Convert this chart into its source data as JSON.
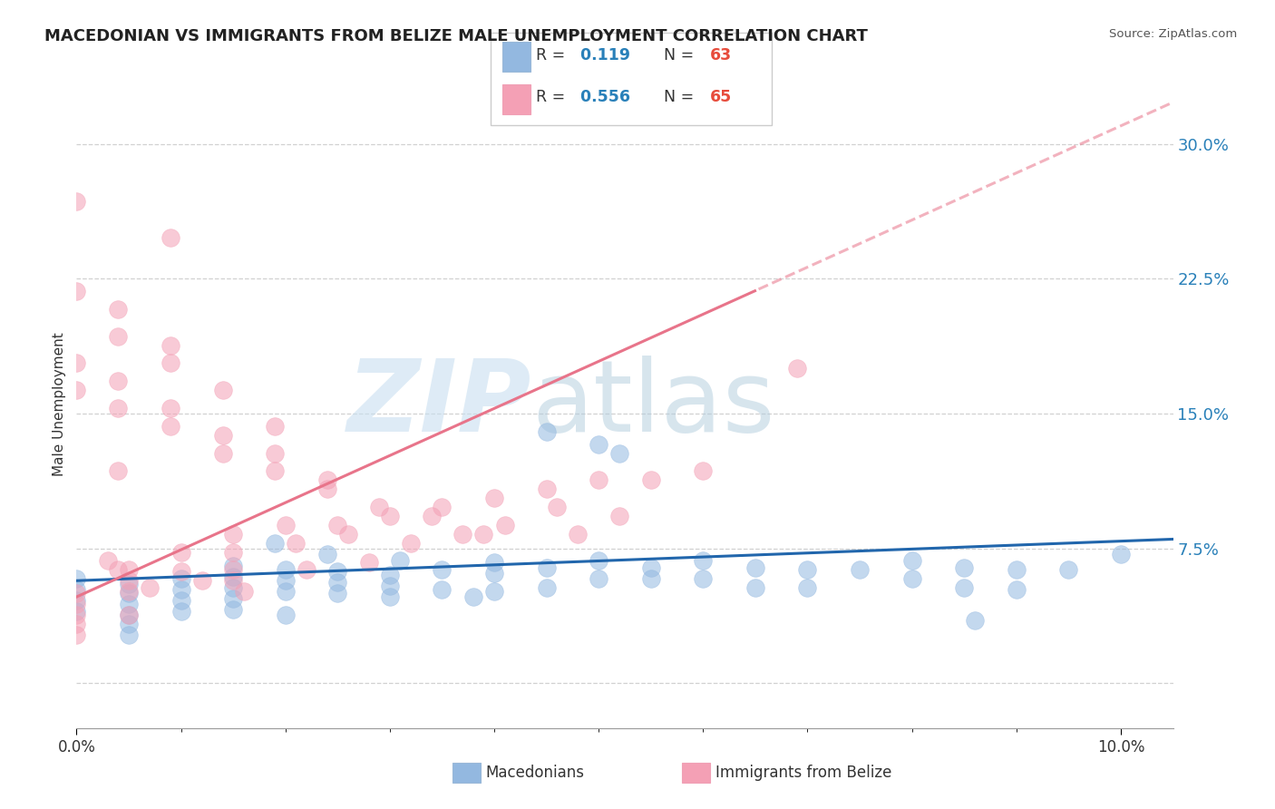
{
  "title": "MACEDONIAN VS IMMIGRANTS FROM BELIZE MALE UNEMPLOYMENT CORRELATION CHART",
  "source_text": "Source: ZipAtlas.com",
  "ylabel": "Male Unemployment",
  "xlim": [
    0.0,
    0.105
  ],
  "ylim": [
    -0.025,
    0.335
  ],
  "xticks_major": [
    0.0,
    0.1
  ],
  "xtick_labels_major": [
    "0.0%",
    "10.0%"
  ],
  "xticks_minor": [
    0.01,
    0.02,
    0.03,
    0.04,
    0.05,
    0.06,
    0.07,
    0.08,
    0.09
  ],
  "yticks": [
    0.0,
    0.075,
    0.15,
    0.225,
    0.3
  ],
  "ytick_labels": [
    "",
    "7.5%",
    "15.0%",
    "22.5%",
    "30.0%"
  ],
  "title_fontsize": 13,
  "axis_label_fontsize": 11,
  "tick_fontsize": 12,
  "background_color": "#ffffff",
  "grid_color": "#cccccc",
  "mac_scatter_color": "#93b8e0",
  "mac_trend_color": "#2166ac",
  "mac_R": 0.119,
  "mac_N": 63,
  "mac_slope": 0.22,
  "mac_intercept": 0.057,
  "bel_scatter_color": "#f4a0b5",
  "bel_trend_color": "#e8748a",
  "bel_R": 0.556,
  "bel_N": 65,
  "bel_slope": 2.62,
  "bel_intercept": 0.048,
  "mac_x": [
    0.0,
    0.0,
    0.0,
    0.0,
    0.005,
    0.005,
    0.005,
    0.005,
    0.005,
    0.005,
    0.01,
    0.01,
    0.01,
    0.01,
    0.015,
    0.015,
    0.015,
    0.015,
    0.015,
    0.02,
    0.02,
    0.02,
    0.02,
    0.025,
    0.025,
    0.025,
    0.03,
    0.03,
    0.03,
    0.035,
    0.035,
    0.04,
    0.04,
    0.04,
    0.045,
    0.045,
    0.05,
    0.05,
    0.055,
    0.055,
    0.06,
    0.06,
    0.065,
    0.065,
    0.07,
    0.07,
    0.075,
    0.08,
    0.08,
    0.085,
    0.085,
    0.09,
    0.09,
    0.095,
    0.1,
    0.045,
    0.05,
    0.052,
    0.038,
    0.019,
    0.024,
    0.031,
    0.086
  ],
  "mac_y": [
    0.058,
    0.052,
    0.046,
    0.04,
    0.055,
    0.05,
    0.044,
    0.038,
    0.033,
    0.027,
    0.058,
    0.052,
    0.046,
    0.04,
    0.065,
    0.059,
    0.053,
    0.047,
    0.041,
    0.063,
    0.057,
    0.051,
    0.038,
    0.062,
    0.056,
    0.05,
    0.06,
    0.054,
    0.048,
    0.063,
    0.052,
    0.067,
    0.061,
    0.051,
    0.064,
    0.053,
    0.068,
    0.058,
    0.064,
    0.058,
    0.068,
    0.058,
    0.064,
    0.053,
    0.063,
    0.053,
    0.063,
    0.068,
    0.058,
    0.064,
    0.053,
    0.063,
    0.052,
    0.063,
    0.072,
    0.14,
    0.133,
    0.128,
    0.048,
    0.078,
    0.072,
    0.068,
    0.035
  ],
  "bel_x": [
    0.0,
    0.0,
    0.0,
    0.0,
    0.0,
    0.003,
    0.005,
    0.005,
    0.005,
    0.005,
    0.007,
    0.01,
    0.01,
    0.012,
    0.015,
    0.015,
    0.015,
    0.015,
    0.016,
    0.02,
    0.021,
    0.022,
    0.025,
    0.026,
    0.028,
    0.03,
    0.032,
    0.035,
    0.037,
    0.04,
    0.041,
    0.045,
    0.046,
    0.048,
    0.05,
    0.052,
    0.055,
    0.06,
    0.0,
    0.004,
    0.009,
    0.014,
    0.019,
    0.024,
    0.029,
    0.034,
    0.039,
    0.0,
    0.004,
    0.009,
    0.014,
    0.019,
    0.024,
    0.004,
    0.009,
    0.014,
    0.019,
    0.0,
    0.004,
    0.009,
    0.004,
    0.0,
    0.004,
    0.009,
    0.069
  ],
  "bel_y": [
    0.05,
    0.044,
    0.038,
    0.033,
    0.027,
    0.068,
    0.063,
    0.057,
    0.051,
    0.038,
    0.053,
    0.073,
    0.062,
    0.057,
    0.083,
    0.073,
    0.063,
    0.057,
    0.051,
    0.088,
    0.078,
    0.063,
    0.088,
    0.083,
    0.067,
    0.093,
    0.078,
    0.098,
    0.083,
    0.103,
    0.088,
    0.108,
    0.098,
    0.083,
    0.113,
    0.093,
    0.113,
    0.118,
    0.163,
    0.153,
    0.143,
    0.128,
    0.118,
    0.108,
    0.098,
    0.093,
    0.083,
    0.178,
    0.168,
    0.153,
    0.138,
    0.128,
    0.113,
    0.193,
    0.178,
    0.163,
    0.143,
    0.218,
    0.208,
    0.188,
    0.118,
    0.268,
    0.063,
    0.248,
    0.175
  ]
}
